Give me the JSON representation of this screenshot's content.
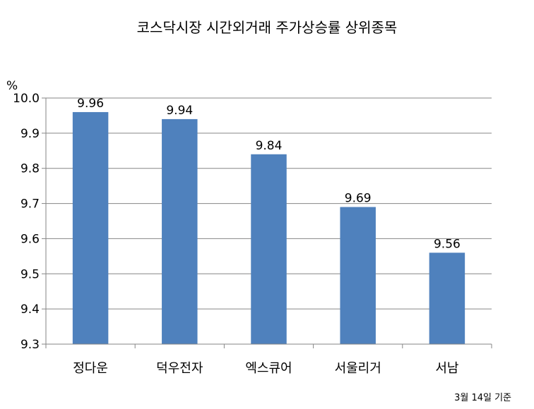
{
  "chart_data": {
    "type": "bar",
    "title": "코스닥시장 시간외거래  주가상승률 상위종목",
    "ylabel": "%",
    "xlabel": "",
    "categories": [
      "정다운",
      "덕우전자",
      "엑스큐어",
      "서울리거",
      "서남"
    ],
    "values": [
      9.96,
      9.94,
      9.84,
      9.69,
      9.56
    ],
    "data_labels": [
      "9.96",
      "9.94",
      "9.84",
      "9.69",
      "9.56"
    ],
    "ylim": [
      9.3,
      10.0
    ],
    "yticks": [
      "9.3",
      "9.4",
      "9.5",
      "9.6",
      "9.7",
      "9.8",
      "9.9",
      "10.0"
    ],
    "grid": true,
    "legend": "none",
    "bar_color": "#4F81BD",
    "note": "3월 14일 기준"
  }
}
